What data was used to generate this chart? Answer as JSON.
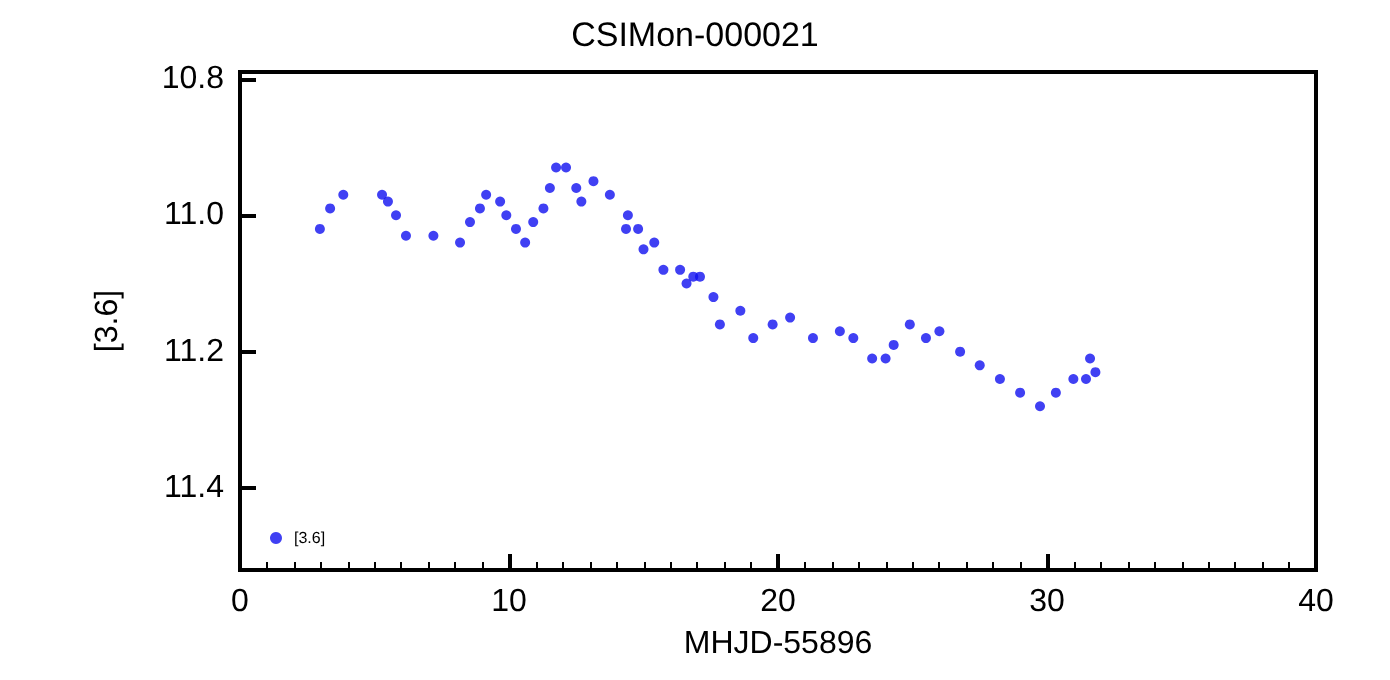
{
  "chart_data": {
    "type": "scatter",
    "title": "CSIMon-000021",
    "xlabel": "MHJD-55896",
    "ylabel": "[3.6]",
    "xlim": [
      0,
      40
    ],
    "xticks": [
      0,
      10,
      20,
      30,
      40
    ],
    "ylim": [
      11.52,
      10.79
    ],
    "yticks": [
      {
        "value": 10.8,
        "label": "10.8"
      },
      {
        "value": 11,
        "label": "11.0"
      },
      {
        "value": 11.2,
        "label": "11.2"
      },
      {
        "value": 11.4,
        "label": "11.4"
      }
    ],
    "grid": false,
    "legend": "bottom left",
    "marker": "circle",
    "series": [
      {
        "name": "[3.6]",
        "color": "#1010f0",
        "x": [
          2.97,
          3.35,
          3.84,
          5.28,
          5.5,
          5.8,
          6.17,
          7.19,
          8.18,
          8.55,
          8.92,
          9.15,
          9.67,
          9.9,
          10.26,
          10.6,
          10.9,
          11.28,
          11.52,
          11.75,
          12.12,
          12.5,
          12.69,
          13.14,
          13.75,
          14.42,
          14.35,
          14.8,
          15.0,
          15.4,
          15.74,
          16.36,
          16.85,
          17.1,
          16.6,
          17.6,
          17.84,
          18.6,
          19.08,
          19.8,
          20.45,
          21.3,
          22.3,
          22.8,
          23.5,
          24.0,
          24.3,
          24.9,
          25.5,
          26.0,
          26.77,
          27.5,
          28.25,
          29.0,
          29.74,
          30.33,
          30.98,
          31.45,
          31.6,
          31.8
        ],
        "values": [
          11.02,
          10.99,
          10.97,
          10.97,
          10.98,
          11.0,
          11.03,
          11.03,
          11.04,
          11.01,
          10.99,
          10.97,
          10.98,
          11.0,
          11.02,
          11.04,
          11.01,
          10.99,
          10.96,
          10.93,
          10.93,
          10.96,
          10.98,
          10.95,
          10.97,
          11.0,
          11.02,
          11.02,
          11.05,
          11.04,
          11.08,
          11.08,
          11.09,
          11.09,
          11.1,
          11.12,
          11.16,
          11.14,
          11.18,
          11.16,
          11.15,
          11.18,
          11.17,
          11.18,
          11.21,
          11.21,
          11.19,
          11.16,
          11.18,
          11.17,
          11.2,
          11.22,
          11.24,
          11.26,
          11.28,
          11.26,
          11.24,
          11.24,
          11.21,
          11.23
        ]
      }
    ]
  }
}
